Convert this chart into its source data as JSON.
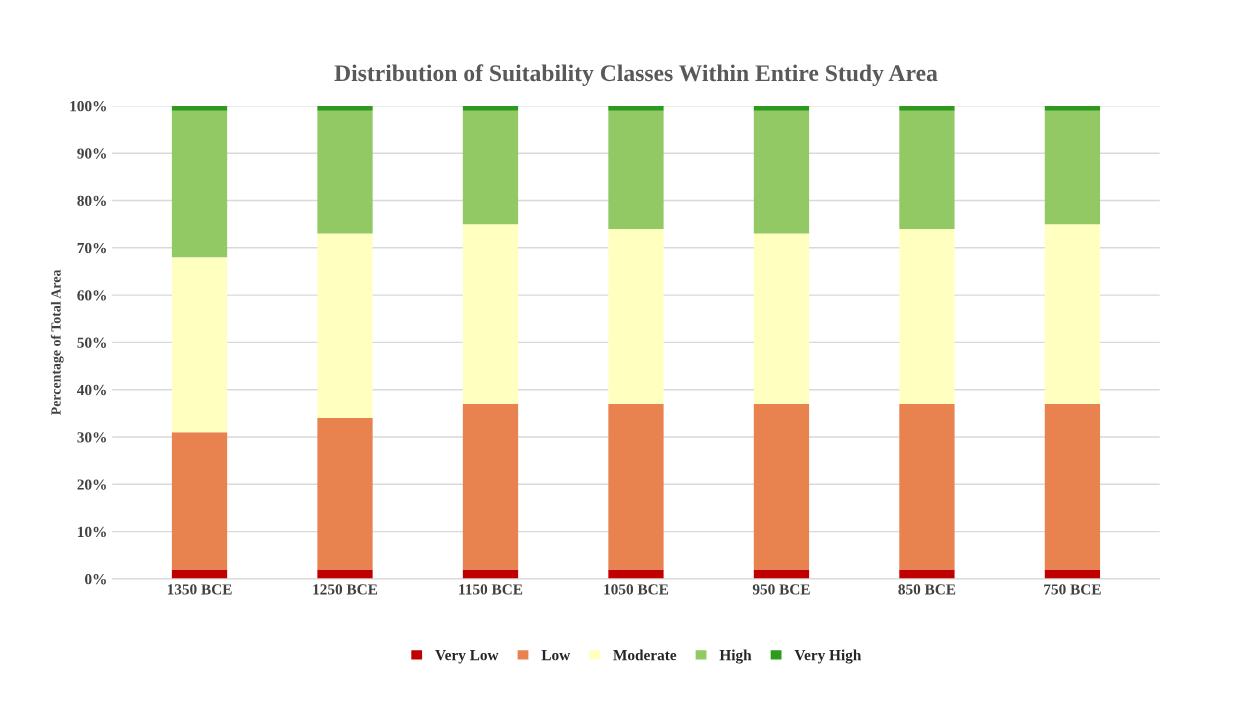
{
  "chart_data": {
    "type": "bar",
    "stacked": true,
    "title": "Distribution of Suitability Classes Within Entire Study Area",
    "ylabel": "Percentage of Total Area",
    "categories": [
      "1350 BCE",
      "1250 BCE",
      "1150 BCE",
      "1050 BCE",
      "950 BCE",
      "850 BCE",
      "750 BCE"
    ],
    "series": [
      {
        "name": "Very Low",
        "color": "#c00000",
        "values": [
          2,
          2,
          2,
          2,
          2,
          2,
          2
        ]
      },
      {
        "name": "Low",
        "color": "#e8834f",
        "values": [
          29,
          32,
          35,
          35,
          35,
          35,
          35
        ]
      },
      {
        "name": "Moderate",
        "color": "#ffffc0",
        "values": [
          37,
          39,
          38,
          37,
          36,
          37,
          38
        ]
      },
      {
        "name": "High",
        "color": "#92c965",
        "values": [
          31,
          26,
          24,
          25,
          26,
          25,
          24
        ]
      },
      {
        "name": "Very High",
        "color": "#2e9a1c",
        "values": [
          1,
          1,
          1,
          1,
          1,
          1,
          1
        ]
      }
    ],
    "ylim": [
      0,
      100
    ],
    "yticks": [
      {
        "value": 0,
        "label": "0%"
      },
      {
        "value": 10,
        "label": "10%"
      },
      {
        "value": 20,
        "label": "20%"
      },
      {
        "value": 30,
        "label": "30%"
      },
      {
        "value": 40,
        "label": "40%"
      },
      {
        "value": 50,
        "label": "50%"
      },
      {
        "value": 60,
        "label": "60%"
      },
      {
        "value": 70,
        "label": "70%"
      },
      {
        "value": 80,
        "label": "80%"
      },
      {
        "value": 90,
        "label": "90%"
      },
      {
        "value": 100,
        "label": "100%"
      }
    ],
    "grid": "y",
    "legend": "bottom"
  }
}
